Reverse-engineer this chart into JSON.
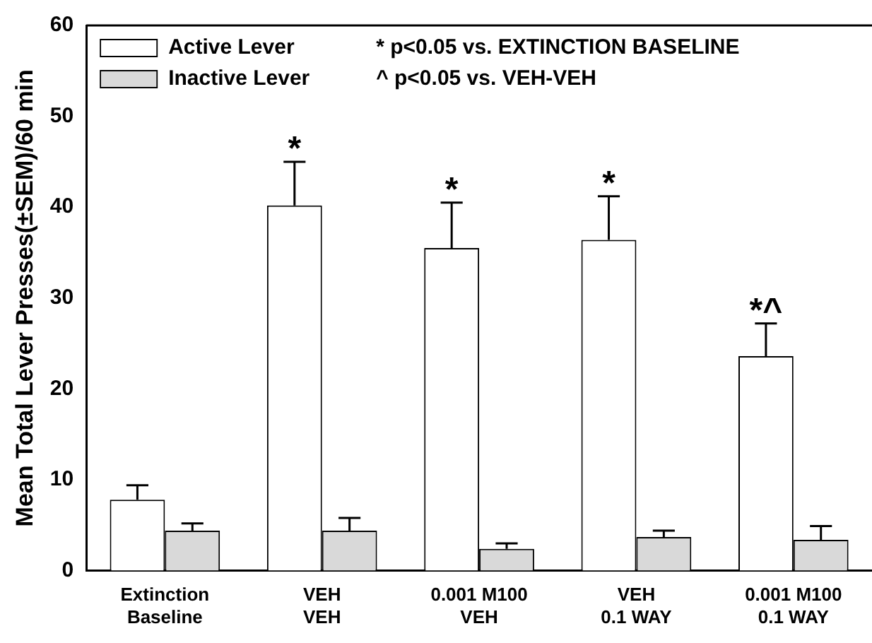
{
  "chart_data": {
    "type": "bar",
    "ylabel": "Mean Total Lever Presses(±SEM)/60 min",
    "categories": [
      "Extinction\nBaseline",
      "VEH\nVEH",
      "0.001 M100\nVEH",
      "VEH\n0.1 WAY",
      "0.001 M100\n0.1 WAY"
    ],
    "series": [
      {
        "name": "Active Lever",
        "color": "#ffffff",
        "values": [
          7.8,
          40.2,
          35.5,
          36.4,
          23.6
        ],
        "errors": [
          1.6,
          4.8,
          5.0,
          4.8,
          3.6
        ]
      },
      {
        "name": "Inactive Lever",
        "color": "#d9d9d9",
        "values": [
          4.4,
          4.4,
          2.4,
          3.7,
          3.4
        ],
        "errors": [
          0.8,
          1.4,
          0.6,
          0.7,
          1.5
        ]
      }
    ],
    "ylim": [
      0,
      60
    ],
    "yticks": [
      0,
      10,
      20,
      30,
      40,
      50,
      60
    ],
    "grid": false,
    "legend": "top left",
    "annotations": [
      "* p<0.05 vs. EXTINCTION BASELINE",
      "^ p<0.05 vs. VEH-VEH",
      {
        "text": "*",
        "x": "VEH\nVEH",
        "y": 40.2
      },
      {
        "text": "*",
        "x": "0.001 M100\nVEH",
        "y": 35.5
      },
      {
        "text": "*",
        "x": "VEH\n0.1 WAY",
        "y": 36.4
      },
      {
        "text": "*^",
        "x": "0.001 M100\n0.1 WAY",
        "y": 23.6
      }
    ]
  }
}
